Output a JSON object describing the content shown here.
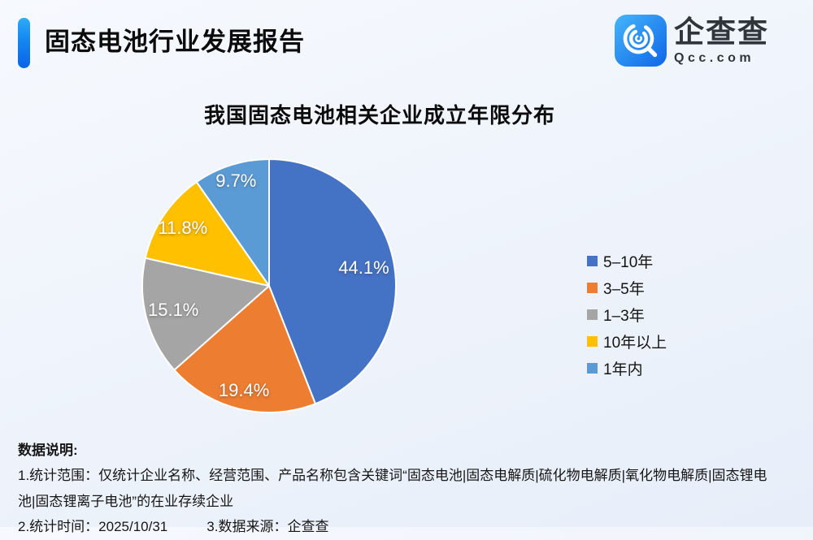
{
  "header": {
    "title": "固态电池行业发展报告",
    "logo": {
      "name": "企查查",
      "domain": "Qcc.com"
    }
  },
  "chart_data": {
    "type": "pie",
    "title": "我国固态电池相关企业成立年限分布",
    "categories": [
      "5–10年",
      "3–5年",
      "1–3年",
      "10年以上",
      "1年内"
    ],
    "values": [
      44.1,
      19.4,
      15.1,
      11.8,
      9.7
    ],
    "labels": [
      "44.1%",
      "19.4%",
      "15.1%",
      "11.8%",
      "9.7%"
    ],
    "colors": [
      "#4472C4",
      "#ED7D31",
      "#A5A5A5",
      "#FFC000",
      "#5B9BD5"
    ],
    "start_angle_deg": 0,
    "direction": "clockwise",
    "legend_position": "right",
    "slice_border_color": "#ffffff"
  },
  "notes": {
    "heading": "数据说明:",
    "scope": "1.统计范围：仅统计企业名称、经营范围、产品名称包含关键词“固态电池|固态电解质|硫化物电解质|氧化物电解质|固态锂电池|固态锂离子电池”的在业存续企业",
    "time": "2.统计时间：2025/10/31",
    "source": "3.数据来源：企查查"
  }
}
